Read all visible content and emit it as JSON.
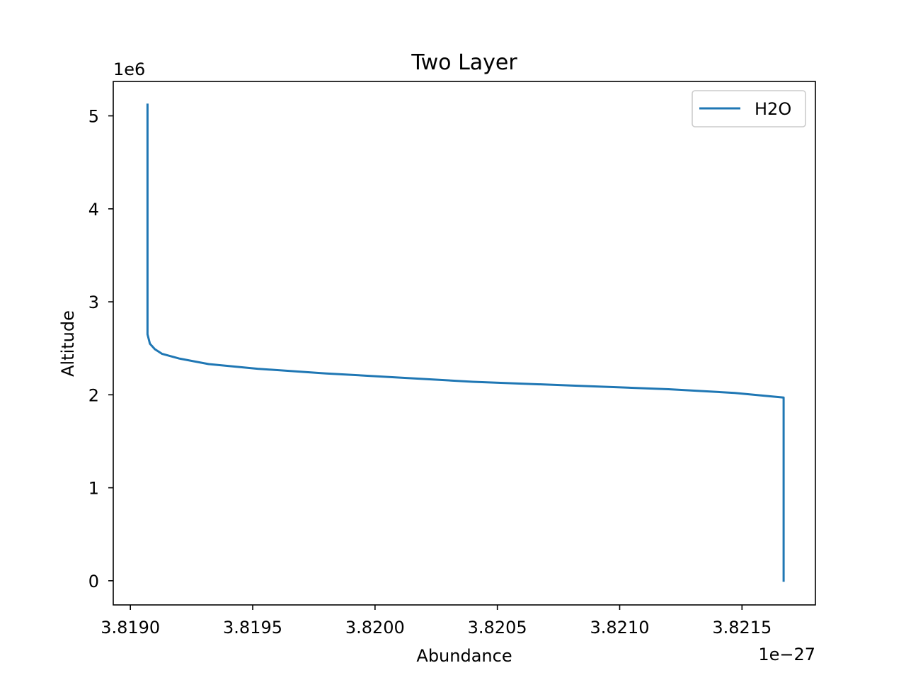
{
  "chart_data": {
    "type": "line",
    "title": "Two Layer",
    "xlabel": "Abundance",
    "ylabel": "Altitude",
    "x_offset_label": "1e−27",
    "y_offset_label": "1e6",
    "xlim": [
      3.81893,
      3.8218
    ],
    "ylim": [
      -0.26,
      5.37
    ],
    "xticks": [
      3.819,
      3.8195,
      3.82,
      3.8205,
      3.821,
      3.8215
    ],
    "xtick_labels": [
      "3.8190",
      "3.8195",
      "3.8200",
      "3.8205",
      "3.8210",
      "3.8215"
    ],
    "yticks": [
      0,
      1,
      2,
      3,
      4,
      5
    ],
    "ytick_labels": [
      "0",
      "1",
      "2",
      "3",
      "4",
      "5"
    ],
    "grid": false,
    "legend_position": "upper-right",
    "series": [
      {
        "name": "H2O",
        "color": "#1f77b4",
        "x": [
          3.82167,
          3.82167,
          3.82147,
          3.8212,
          3.8208,
          3.8204,
          3.82,
          3.8198,
          3.81952,
          3.81932,
          3.8192,
          3.81913,
          3.8191,
          3.81908,
          3.81907,
          3.81907,
          3.81907
        ],
        "y": [
          0.0,
          1.97,
          2.02,
          2.06,
          2.1,
          2.14,
          2.2,
          2.23,
          2.28,
          2.33,
          2.39,
          2.44,
          2.49,
          2.55,
          2.65,
          3.0,
          5.12
        ]
      }
    ]
  }
}
